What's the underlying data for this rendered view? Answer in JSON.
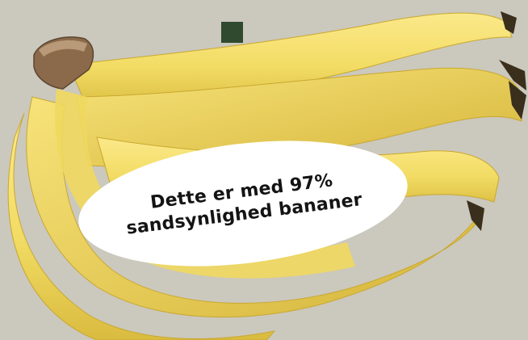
{
  "colors": {
    "background": "#cbc8bd",
    "banana_yellow": "#f2dc64",
    "banana_shadow": "#d7b93a",
    "stem_brown": "#8a6a4a",
    "marker_square": "#2f4a2e",
    "bubble_fill": "#ffffff",
    "bubble_text": "#141414"
  },
  "image": {
    "subject_icon": "banana-bunch-photo"
  },
  "caption": {
    "line1": "Dette er med 97%",
    "line2": "sandsynlighed bananer"
  }
}
